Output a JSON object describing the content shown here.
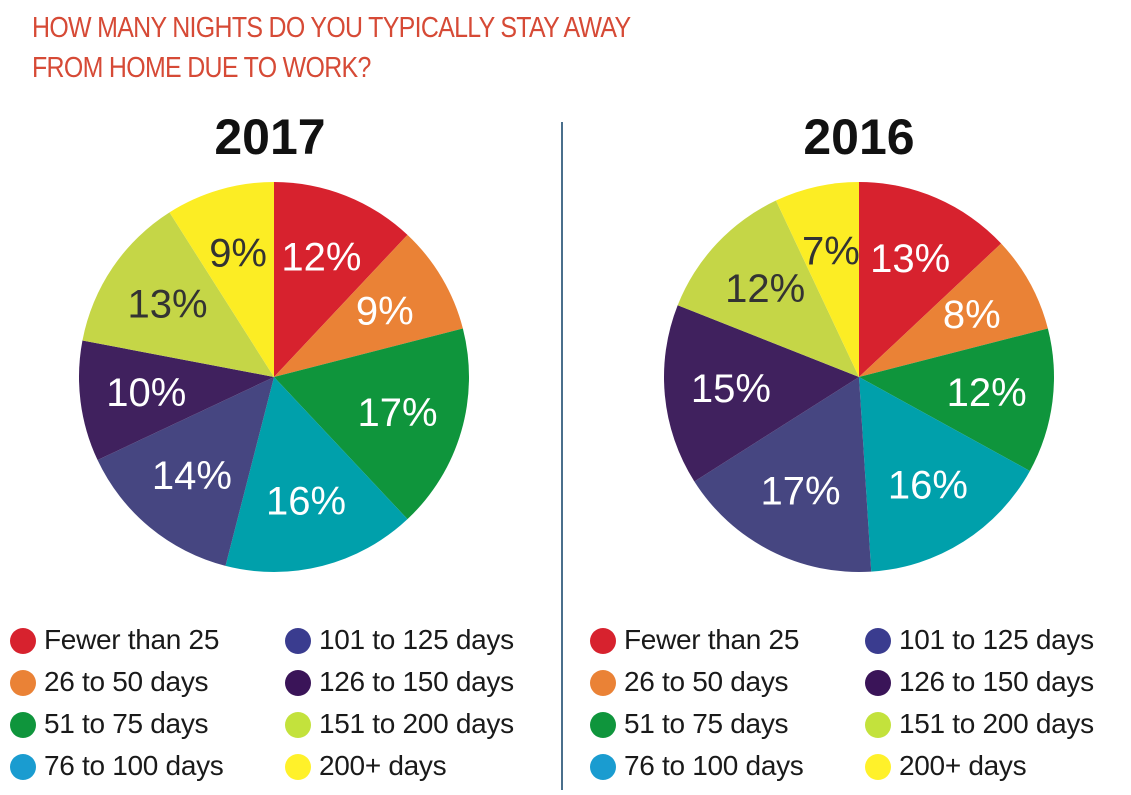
{
  "title": {
    "line1": "HOW MANY NIGHTS DO YOU TYPICALLY STAY AWAY",
    "line2": "FROM HOME DUE TO WORK?"
  },
  "colors": {
    "title": "#d64a36",
    "divider": "#4a6f8c"
  },
  "chart_data": [
    {
      "type": "pie",
      "title": "2017",
      "categories": [
        "Fewer than 25",
        "26 to 50 days",
        "51 to 75 days",
        "76 to 100 days",
        "101 to 125 days",
        "126 to 150 days",
        "151 to 200 days",
        "200+ days"
      ],
      "values": [
        12,
        9,
        17,
        16,
        14,
        10,
        13,
        9
      ],
      "labels": [
        "12%",
        "9%",
        "17%",
        "16%",
        "14%",
        "10%",
        "13%",
        "9%"
      ],
      "colors": [
        "#d7222e",
        "#ea8236",
        "#0f953c",
        "#00a0ab",
        "#464681",
        "#40215e",
        "#c5d647",
        "#fced24"
      ],
      "label_colors": [
        "#ffffff",
        "#ffffff",
        "#ffffff",
        "#ffffff",
        "#ffffff",
        "#ffffff",
        "#333333",
        "#333333"
      ]
    },
    {
      "type": "pie",
      "title": "2016",
      "categories": [
        "Fewer than 25",
        "26 to 50 days",
        "51 to 75 days",
        "76 to 100 days",
        "101 to 125 days",
        "126 to 150 days",
        "151 to 200 days",
        "200+ days"
      ],
      "values": [
        13,
        8,
        12,
        16,
        17,
        15,
        12,
        7
      ],
      "labels": [
        "13%",
        "8%",
        "12%",
        "16%",
        "17%",
        "15%",
        "12%",
        "7%"
      ],
      "colors": [
        "#d7222e",
        "#ea8236",
        "#0f953c",
        "#00a0ab",
        "#464681",
        "#40215e",
        "#c5d647",
        "#fced24"
      ],
      "label_colors": [
        "#ffffff",
        "#ffffff",
        "#ffffff",
        "#ffffff",
        "#ffffff",
        "#ffffff",
        "#333333",
        "#333333"
      ]
    }
  ],
  "legend": {
    "items": [
      {
        "label": "Fewer than 25",
        "color": "#d7222e"
      },
      {
        "label": "26 to 50 days",
        "color": "#ea8236"
      },
      {
        "label": "51 to 75 days",
        "color": "#0f953c"
      },
      {
        "label": "76 to 100 days",
        "color": "#1a9cd0"
      },
      {
        "label": "101 to 125 days",
        "color": "#3a3c8f"
      },
      {
        "label": "126 to 150 days",
        "color": "#3a1458"
      },
      {
        "label": "151 to 200 days",
        "color": "#c3e23c"
      },
      {
        "label": "200+ days",
        "color": "#fff12a"
      }
    ]
  }
}
